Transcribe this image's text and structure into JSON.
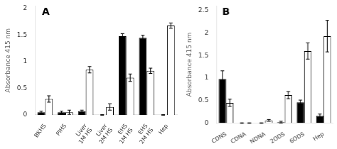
{
  "chart_data": [
    {
      "type": "bar",
      "categories": [
        "BKHS",
        "PIHS",
        "Liver\n1M HS",
        "Liver\n2M HS",
        "EHS\n1M HS",
        "EHS\n2M HS",
        "Hep"
      ],
      "series": [
        {
          "color": "#000000",
          "values": [
            0.05,
            0.05,
            0.07,
            0.0,
            1.48,
            1.45,
            0.0
          ],
          "errors": [
            0.02,
            0.02,
            0.02,
            0.005,
            0.05,
            0.05,
            0.005
          ]
        },
        {
          "color": "#ffffff",
          "values": [
            0.3,
            0.05,
            0.85,
            0.15,
            0.7,
            0.83,
            1.68
          ],
          "errors": [
            0.06,
            0.04,
            0.06,
            0.06,
            0.07,
            0.05,
            0.05
          ]
        }
      ],
      "ylabel": "Absorbance 415 nm",
      "ylim": [
        0,
        2.05
      ],
      "yticks": [
        0,
        0.5,
        1,
        1.5,
        2
      ],
      "annotations": [
        "A"
      ],
      "grid": false
    },
    {
      "type": "bar",
      "categories": [
        "CDNS",
        "CDNA",
        "NDNA",
        "2ODS",
        "6ODS",
        "Hep"
      ],
      "series": [
        {
          "color": "#000000",
          "values": [
            0.98,
            0.0,
            0.0,
            0.02,
            0.46,
            0.16
          ],
          "errors": [
            0.18,
            0.005,
            0.005,
            0.02,
            0.05,
            0.04
          ]
        },
        {
          "color": "#ffffff",
          "values": [
            0.45,
            0.0,
            0.06,
            0.62,
            1.6,
            1.93
          ],
          "errors": [
            0.08,
            0.005,
            0.02,
            0.08,
            0.18,
            0.35
          ]
        }
      ],
      "ylabel": "Absorbance 415 nm",
      "ylim": [
        0,
        2.6
      ],
      "yticks": [
        0,
        0.5,
        1,
        1.5,
        2,
        2.5
      ],
      "annotations": [
        "B"
      ],
      "grid": false
    }
  ]
}
